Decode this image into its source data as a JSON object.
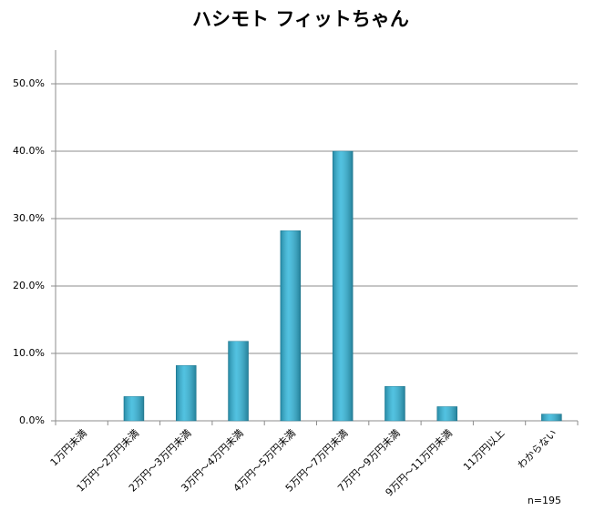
{
  "chart_data": {
    "type": "bar",
    "title": "ハシモト フィットちゃん",
    "categories": [
      "1万円未満",
      "1万円～2万円未満",
      "2万円～3万円未満",
      "3万円～4万円未満",
      "4万円～5万円未満",
      "5万円～7万円未満",
      "7万円～9万円未満",
      "9万円～11万円未満",
      "11万円以上",
      "わからない"
    ],
    "values": [
      0,
      3.6,
      8.2,
      11.8,
      28.2,
      40.0,
      5.1,
      2.1,
      0,
      1.0
    ],
    "color": "#33b7db",
    "ylim": [
      0,
      55
    ],
    "yticks": [
      {
        "value": 0,
        "label": "0.0%"
      },
      {
        "value": 10,
        "label": "10.0%"
      },
      {
        "value": 20,
        "label": "20.0%"
      },
      {
        "value": 30,
        "label": "30.0%"
      },
      {
        "value": 40,
        "label": "40.0%"
      },
      {
        "value": 50,
        "label": "50.0%"
      }
    ],
    "grid": true,
    "annotation": "n=195"
  }
}
